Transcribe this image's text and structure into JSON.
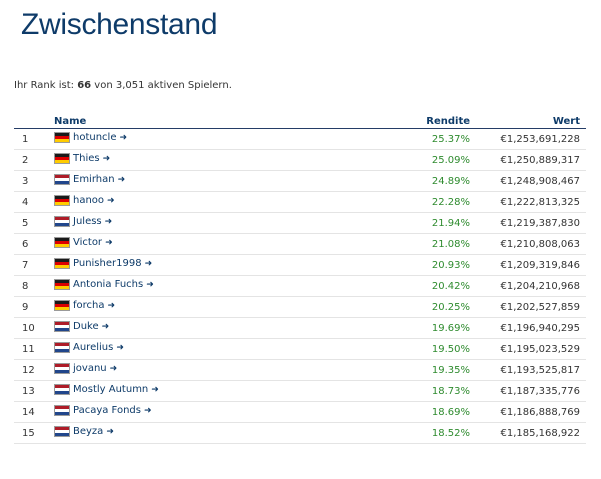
{
  "page": {
    "title": "Zwischenstand",
    "rank_prefix": "Ihr Rank ist: ",
    "rank_value": "66",
    "rank_suffix": " von 3,051 aktiven Spielern."
  },
  "table": {
    "headers": {
      "rank": "",
      "name": "Name",
      "return": "Rendite",
      "value": "Wert"
    },
    "rows": [
      {
        "rank": "1",
        "flag": "de",
        "name": "hotuncle",
        "return": "25.37%",
        "value": "€1,253,691,228"
      },
      {
        "rank": "2",
        "flag": "de",
        "name": "Thies",
        "return": "25.09%",
        "value": "€1,250,889,317"
      },
      {
        "rank": "3",
        "flag": "nl",
        "name": "Emirhan",
        "return": "24.89%",
        "value": "€1,248,908,467"
      },
      {
        "rank": "4",
        "flag": "de",
        "name": "hanoo",
        "return": "22.28%",
        "value": "€1,222,813,325"
      },
      {
        "rank": "5",
        "flag": "nl",
        "name": "Juless",
        "return": "21.94%",
        "value": "€1,219,387,830"
      },
      {
        "rank": "6",
        "flag": "de",
        "name": "Victor",
        "return": "21.08%",
        "value": "€1,210,808,063"
      },
      {
        "rank": "7",
        "flag": "de",
        "name": "Punisher1998",
        "return": "20.93%",
        "value": "€1,209,319,846"
      },
      {
        "rank": "8",
        "flag": "de",
        "name": "Antonia Fuchs",
        "return": "20.42%",
        "value": "€1,204,210,968"
      },
      {
        "rank": "9",
        "flag": "de",
        "name": "forcha",
        "return": "20.25%",
        "value": "€1,202,527,859"
      },
      {
        "rank": "10",
        "flag": "nl",
        "name": "Duke",
        "return": "19.69%",
        "value": "€1,196,940,295"
      },
      {
        "rank": "11",
        "flag": "nl",
        "name": "Aurelius",
        "return": "19.50%",
        "value": "€1,195,023,529"
      },
      {
        "rank": "12",
        "flag": "nl",
        "name": "jovanu",
        "return": "19.35%",
        "value": "€1,193,525,817"
      },
      {
        "rank": "13",
        "flag": "nl",
        "name": "Mostly Autumn",
        "return": "18.73%",
        "value": "€1,187,335,776"
      },
      {
        "rank": "14",
        "flag": "nl",
        "name": "Pacaya Fonds",
        "return": "18.69%",
        "value": "€1,186,888,769"
      },
      {
        "rank": "15",
        "flag": "nl",
        "name": "Beyza",
        "return": "18.52%",
        "value": "€1,185,168,922"
      }
    ]
  },
  "icons": {
    "row_link": "arrow-right-icon",
    "flag_de": "germany-flag-icon",
    "flag_nl": "netherlands-flag-icon"
  },
  "colors": {
    "title": "#0e3b69",
    "return_positive": "#2e8b2e",
    "header_rule": "#243c66"
  }
}
